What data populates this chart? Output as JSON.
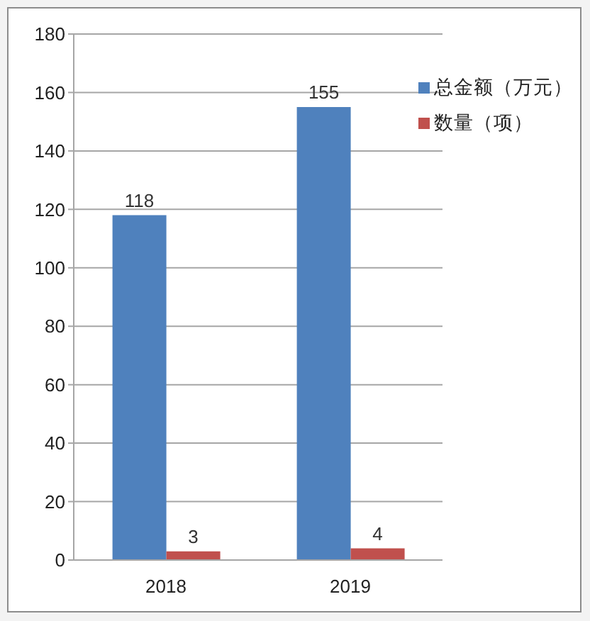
{
  "chart_data": {
    "type": "bar",
    "categories": [
      "2018",
      "2019"
    ],
    "series": [
      {
        "name": "总金额（万元）",
        "color": "#4f81bd",
        "values": [
          118,
          155
        ]
      },
      {
        "name": "数量（项）",
        "color": "#c0504d",
        "values": [
          3,
          4
        ]
      }
    ],
    "ylim": [
      0,
      180
    ],
    "yticks": [
      0,
      20,
      40,
      60,
      80,
      100,
      120,
      140,
      160,
      180
    ],
    "grid": "y",
    "legend": "right",
    "data_labels": true
  }
}
